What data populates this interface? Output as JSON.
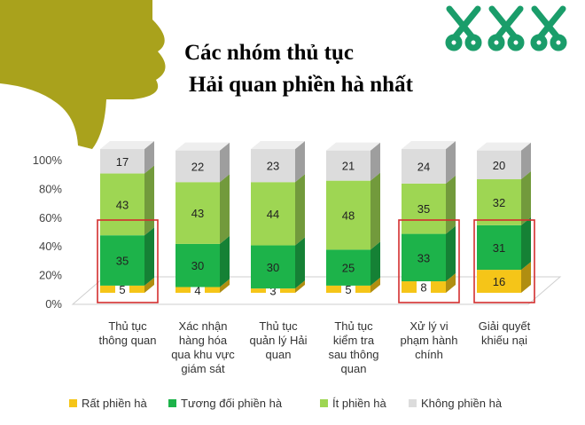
{
  "title_lines": [
    "Các nhóm thủ tục",
    "Hải quan phiền hà nhất"
  ],
  "decorations": {
    "thumb_icon": "thumbs-down-icon",
    "scissors_icon": "scissors-icon",
    "scissors_count": 3
  },
  "chart_data": {
    "type": "bar",
    "stacked": true,
    "percent_axis": true,
    "title": "Các nhóm thủ tục Hải quan phiền hà nhất",
    "categories": [
      "Thủ tục\nthông quan",
      "Xác nhận\nhàng hóa\nqua khu vực\ngiám sát",
      "Thủ tục\nquản lý Hải\nquan",
      "Thủ tục\nkiểm tra\nsau thông\nquan",
      "Xử lý vi\nphạm hành\nchính",
      "Giải quyết\nkhiếu nại"
    ],
    "series": [
      {
        "name": "Rất phiền hà",
        "color": "#f5c518",
        "values": [
          5,
          4,
          3,
          5,
          8,
          16
        ]
      },
      {
        "name": "Tương đối phiền hà",
        "color": "#1db34a",
        "values": [
          35,
          30,
          30,
          25,
          33,
          31
        ]
      },
      {
        "name": "Ít phiền hà",
        "color": "#9ed653",
        "values": [
          43,
          43,
          44,
          48,
          35,
          32
        ]
      },
      {
        "name": "Không phiền hà",
        "color": "#dcdcdc",
        "values": [
          17,
          22,
          23,
          21,
          24,
          20
        ]
      }
    ],
    "y_ticks": [
      "0%",
      "20%",
      "40%",
      "60%",
      "80%",
      "100%"
    ],
    "ylim": [
      0,
      100
    ],
    "highlighted_categories": [
      0,
      4,
      5
    ],
    "legend_position": "bottom",
    "grid": false
  }
}
